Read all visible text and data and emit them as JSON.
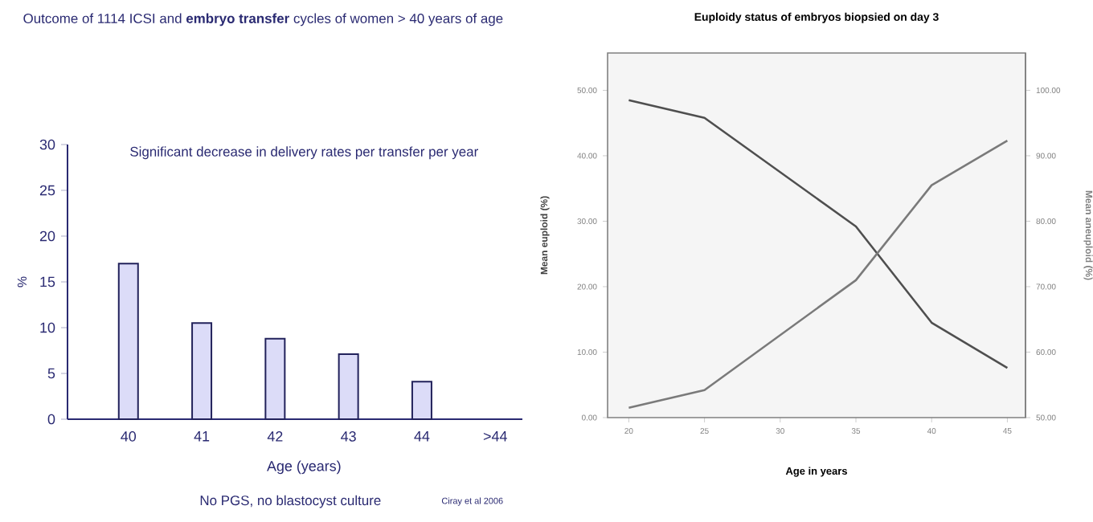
{
  "chart_data": [
    {
      "type": "bar",
      "title": "Outcome of 1114 ICSI and **embryo transfer** cycles of women > 40 years of age",
      "xlabel": "Age (years)",
      "ylabel": "%",
      "categories": [
        "40",
        "41",
        "42",
        "43",
        "44",
        ">44"
      ],
      "values": [
        17,
        10.5,
        8.8,
        7.1,
        4.1,
        null
      ],
      "color": "#dcdcf8",
      "ylim": [
        0,
        30
      ],
      "yticks": [
        0,
        5,
        10,
        15,
        20,
        25,
        30
      ],
      "annotations": [
        "Significant decrease in delivery rates per transfer per year",
        "No PGS, no blastocyst culture",
        "Ciray et al 2006"
      ]
    },
    {
      "type": "line",
      "title": "Euploidy status of embryos biopsied on day 3",
      "xlabel": "Age in years",
      "ylabel": "Mean euploid (%)",
      "y2label": "Mean aneuploid (%)",
      "xlim": [
        18.6,
        46.2
      ],
      "xticks": [
        20,
        25,
        30,
        35,
        40,
        45
      ],
      "ylim": [
        0,
        55.7
      ],
      "yticks": [
        {
          "value": 0,
          "label": "0.00"
        },
        {
          "value": 10,
          "label": "10.00"
        },
        {
          "value": 20,
          "label": "20.00"
        },
        {
          "value": 30,
          "label": "30.00"
        },
        {
          "value": 40,
          "label": "40.00"
        },
        {
          "value": 50,
          "label": "50.00"
        }
      ],
      "y2lim": [
        50,
        105.7
      ],
      "y2ticks": [
        {
          "value": 50,
          "label": "50.00"
        },
        {
          "value": 60,
          "label": "60.00"
        },
        {
          "value": 70,
          "label": "70.00"
        },
        {
          "value": 80,
          "label": "80.00"
        },
        {
          "value": 90,
          "label": "90.00"
        },
        {
          "value": 100,
          "label": "100.00"
        }
      ],
      "series": [
        {
          "color": "#4f4f4f",
          "x": [
            20,
            25,
            35,
            40,
            45
          ],
          "values": [
            48.5,
            45.8,
            29.2,
            14.5,
            7.6
          ]
        },
        {
          "color": "#7a7a7a",
          "axis": "y2",
          "x": [
            20,
            25,
            35,
            40,
            45
          ],
          "values": [
            51.5,
            54.2,
            71,
            85.5,
            92.3
          ]
        }
      ]
    }
  ]
}
